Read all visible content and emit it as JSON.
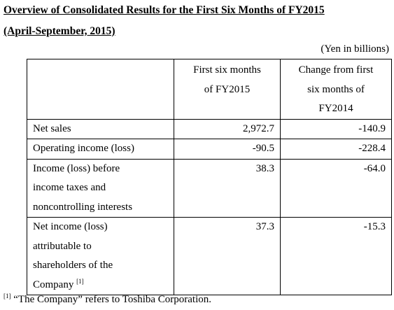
{
  "header": {
    "title": "Overview of Consolidated Results for the First Six Months of FY2015",
    "subtitle": "(April-September, 2015)",
    "unit": "(Yen in billions)"
  },
  "table": {
    "columns": [
      [
        "First six months",
        "of FY2015"
      ],
      [
        "Change from first",
        "six months of",
        "FY2014"
      ]
    ],
    "rows": [
      {
        "label": [
          "Net sales"
        ],
        "values": [
          "2,972.7",
          "-140.9"
        ]
      },
      {
        "label": [
          "Operating income (loss)"
        ],
        "values": [
          "-90.5",
          "-228.4"
        ]
      },
      {
        "label": [
          "Income (loss) before",
          "income taxes and",
          "noncontrolling interests"
        ],
        "values": [
          "38.3",
          "-64.0"
        ]
      },
      {
        "label": [
          "Net income (loss)",
          "attributable to",
          "shareholders of the",
          "Company"
        ],
        "note_ref": "[1]",
        "values": [
          "37.3",
          "-15.3"
        ]
      }
    ]
  },
  "footnote": {
    "marker": "[1]",
    "text": "“The Company” refers to Toshiba Corporation."
  }
}
